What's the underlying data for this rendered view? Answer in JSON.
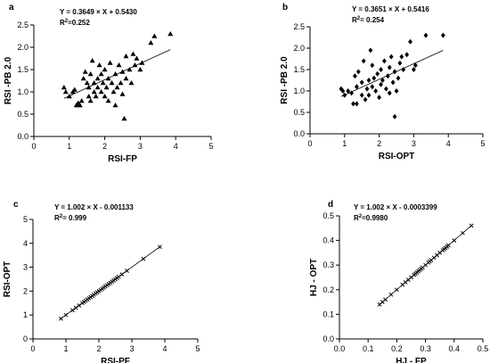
{
  "figure": {
    "background": "#ffffff",
    "color": "#000000"
  },
  "chart_data": [
    {
      "type": "scatter",
      "panel": "a",
      "equation": "Y = 0.3649 × X + 0.5430",
      "r2_prefix": "R",
      "r2_suffix": "=0.252",
      "xlabel": "RSI-FP",
      "ylabel": "RSI -PB 2.0",
      "xlim": [
        0,
        5
      ],
      "ylim": [
        0,
        2.5
      ],
      "xticks": [
        "0",
        "1",
        "2",
        "3",
        "4",
        "5"
      ],
      "yticks": [
        "0.0",
        "0.5",
        "1.0",
        "1.5",
        "2.0",
        "2.5"
      ],
      "marker": "triangle",
      "grid": false,
      "fit": {
        "slope": 0.3649,
        "intercept": 0.543,
        "x_range": [
          0.85,
          3.85
        ]
      },
      "points": [
        [
          0.85,
          1.1
        ],
        [
          0.9,
          1.0
        ],
        [
          1.0,
          0.9
        ],
        [
          1.1,
          1.0
        ],
        [
          1.15,
          1.05
        ],
        [
          1.2,
          0.7
        ],
        [
          1.25,
          0.75
        ],
        [
          1.3,
          0.7
        ],
        [
          1.35,
          0.8
        ],
        [
          1.4,
          1.3
        ],
        [
          1.45,
          1.45
        ],
        [
          1.5,
          1.2
        ],
        [
          1.55,
          1.1
        ],
        [
          1.55,
          0.9
        ],
        [
          1.6,
          1.4
        ],
        [
          1.6,
          0.8
        ],
        [
          1.65,
          1.7
        ],
        [
          1.7,
          1.0
        ],
        [
          1.7,
          1.2
        ],
        [
          1.75,
          0.9
        ],
        [
          1.8,
          1.1
        ],
        [
          1.8,
          1.3
        ],
        [
          1.85,
          1.6
        ],
        [
          1.9,
          1.4
        ],
        [
          1.9,
          1.0
        ],
        [
          1.95,
          1.2
        ],
        [
          2.0,
          0.9
        ],
        [
          2.0,
          1.5
        ],
        [
          2.05,
          1.1
        ],
        [
          2.1,
          1.3
        ],
        [
          2.1,
          0.8
        ],
        [
          2.15,
          1.65
        ],
        [
          2.2,
          1.2
        ],
        [
          2.25,
          1.0
        ],
        [
          2.3,
          1.4
        ],
        [
          2.3,
          0.7
        ],
        [
          2.35,
          1.1
        ],
        [
          2.4,
          1.6
        ],
        [
          2.45,
          1.2
        ],
        [
          2.5,
          1.45
        ],
        [
          2.5,
          0.95
        ],
        [
          2.55,
          0.4
        ],
        [
          2.6,
          1.8
        ],
        [
          2.6,
          1.3
        ],
        [
          2.7,
          1.5
        ],
        [
          2.75,
          1.2
        ],
        [
          2.8,
          1.85
        ],
        [
          2.85,
          1.6
        ],
        [
          2.9,
          1.75
        ],
        [
          3.0,
          1.5
        ],
        [
          3.05,
          1.65
        ],
        [
          3.3,
          2.1
        ],
        [
          3.4,
          2.25
        ],
        [
          3.85,
          2.3
        ]
      ]
    },
    {
      "type": "scatter",
      "panel": "b",
      "equation": "Y = 0.3651 × X + 0.5416",
      "r2_prefix": "R",
      "r2_suffix": "= 0.254",
      "xlabel": "RSI-OPT",
      "ylabel": "RSI -PB 2.0",
      "xlim": [
        0,
        5
      ],
      "ylim": [
        0,
        2.5
      ],
      "xticks": [
        "0",
        "1",
        "2",
        "3",
        "4",
        "5"
      ],
      "yticks": [
        "0.0",
        "0.5",
        "1.0",
        "1.5",
        "2.0",
        "2.5"
      ],
      "marker": "diamond",
      "grid": false,
      "fit": {
        "slope": 0.3651,
        "intercept": 0.5416,
        "x_range": [
          0.9,
          3.85
        ]
      },
      "points": [
        [
          0.9,
          1.05
        ],
        [
          0.95,
          1.0
        ],
        [
          1.0,
          0.9
        ],
        [
          1.1,
          1.0
        ],
        [
          1.2,
          0.95
        ],
        [
          1.25,
          0.7
        ],
        [
          1.3,
          1.35
        ],
        [
          1.35,
          0.7
        ],
        [
          1.35,
          1.1
        ],
        [
          1.4,
          1.45
        ],
        [
          1.5,
          1.2
        ],
        [
          1.5,
          0.9
        ],
        [
          1.55,
          1.7
        ],
        [
          1.6,
          0.8
        ],
        [
          1.65,
          1.05
        ],
        [
          1.7,
          1.25
        ],
        [
          1.7,
          0.9
        ],
        [
          1.75,
          1.95
        ],
        [
          1.8,
          1.6
        ],
        [
          1.8,
          1.1
        ],
        [
          1.85,
          1.3
        ],
        [
          1.9,
          1.0
        ],
        [
          1.95,
          1.4
        ],
        [
          2.0,
          0.85
        ],
        [
          2.05,
          1.15
        ],
        [
          2.05,
          1.5
        ],
        [
          2.1,
          1.25
        ],
        [
          2.15,
          1.7
        ],
        [
          2.2,
          1.05
        ],
        [
          2.25,
          1.35
        ],
        [
          2.3,
          0.95
        ],
        [
          2.3,
          1.55
        ],
        [
          2.35,
          1.8
        ],
        [
          2.4,
          1.2
        ],
        [
          2.45,
          0.4
        ],
        [
          2.45,
          1.45
        ],
        [
          2.5,
          1.0
        ],
        [
          2.55,
          1.3
        ],
        [
          2.6,
          1.65
        ],
        [
          2.65,
          1.8
        ],
        [
          2.7,
          1.5
        ],
        [
          2.8,
          1.85
        ],
        [
          2.9,
          2.15
        ],
        [
          3.0,
          1.5
        ],
        [
          3.05,
          1.6
        ],
        [
          3.35,
          2.3
        ],
        [
          3.85,
          2.3
        ]
      ]
    },
    {
      "type": "scatter",
      "panel": "c",
      "equation": "Y = 1.002 × X - 0.001133",
      "r2_prefix": "R",
      "r2_suffix": "= 0.999",
      "xlabel": "RSI-PF",
      "ylabel": "RSI-OPT",
      "xlim": [
        0,
        5
      ],
      "ylim": [
        0,
        5
      ],
      "xticks": [
        "0",
        "1",
        "2",
        "3",
        "4",
        "5"
      ],
      "yticks": [
        "0",
        "1",
        "2",
        "3",
        "4",
        "5"
      ],
      "marker": "x",
      "grid": false,
      "fit": {
        "slope": 1.002,
        "intercept": -0.001133,
        "x_range": [
          0.85,
          3.85
        ]
      },
      "points": [
        [
          0.85,
          0.85
        ],
        [
          1.0,
          1.0
        ],
        [
          1.2,
          1.2
        ],
        [
          1.3,
          1.3
        ],
        [
          1.4,
          1.4
        ],
        [
          1.5,
          1.5
        ],
        [
          1.55,
          1.55
        ],
        [
          1.6,
          1.6
        ],
        [
          1.65,
          1.65
        ],
        [
          1.7,
          1.7
        ],
        [
          1.75,
          1.75
        ],
        [
          1.8,
          1.8
        ],
        [
          1.85,
          1.85
        ],
        [
          1.9,
          1.9
        ],
        [
          1.95,
          1.95
        ],
        [
          2.0,
          2.0
        ],
        [
          2.05,
          2.05
        ],
        [
          2.1,
          2.1
        ],
        [
          2.15,
          2.15
        ],
        [
          2.2,
          2.2
        ],
        [
          2.25,
          2.25
        ],
        [
          2.3,
          2.3
        ],
        [
          2.35,
          2.35
        ],
        [
          2.4,
          2.4
        ],
        [
          2.45,
          2.45
        ],
        [
          2.5,
          2.5
        ],
        [
          2.55,
          2.55
        ],
        [
          2.6,
          2.6
        ],
        [
          2.7,
          2.7
        ],
        [
          2.85,
          2.85
        ],
        [
          3.35,
          3.35
        ],
        [
          3.85,
          3.85
        ]
      ]
    },
    {
      "type": "scatter",
      "panel": "d",
      "equation": "Y = 1.002 × X - 0.0003399",
      "r2_prefix": "R",
      "r2_suffix": "=0.9980",
      "xlabel": "HJ - FP",
      "ylabel": "HJ - OPT",
      "xlim": [
        0,
        0.5
      ],
      "ylim": [
        0,
        0.5
      ],
      "xticks": [
        "0.0",
        "0.1",
        "0.2",
        "0.3",
        "0.4",
        "0.5"
      ],
      "yticks": [
        "0.0",
        "0.1",
        "0.2",
        "0.3",
        "0.4",
        "0.5"
      ],
      "marker": "x",
      "grid": false,
      "fit": {
        "slope": 1.002,
        "intercept": -0.0003399,
        "x_range": [
          0.14,
          0.46
        ]
      },
      "points": [
        [
          0.14,
          0.14
        ],
        [
          0.15,
          0.15
        ],
        [
          0.16,
          0.16
        ],
        [
          0.18,
          0.18
        ],
        [
          0.2,
          0.2
        ],
        [
          0.22,
          0.22
        ],
        [
          0.23,
          0.23
        ],
        [
          0.24,
          0.24
        ],
        [
          0.25,
          0.25
        ],
        [
          0.26,
          0.26
        ],
        [
          0.265,
          0.265
        ],
        [
          0.27,
          0.27
        ],
        [
          0.275,
          0.275
        ],
        [
          0.28,
          0.28
        ],
        [
          0.285,
          0.285
        ],
        [
          0.29,
          0.29
        ],
        [
          0.3,
          0.3
        ],
        [
          0.31,
          0.31
        ],
        [
          0.315,
          0.315
        ],
        [
          0.32,
          0.32
        ],
        [
          0.33,
          0.33
        ],
        [
          0.34,
          0.34
        ],
        [
          0.35,
          0.35
        ],
        [
          0.36,
          0.36
        ],
        [
          0.365,
          0.365
        ],
        [
          0.37,
          0.37
        ],
        [
          0.375,
          0.375
        ],
        [
          0.38,
          0.38
        ],
        [
          0.4,
          0.4
        ],
        [
          0.43,
          0.43
        ],
        [
          0.46,
          0.46
        ]
      ]
    }
  ]
}
